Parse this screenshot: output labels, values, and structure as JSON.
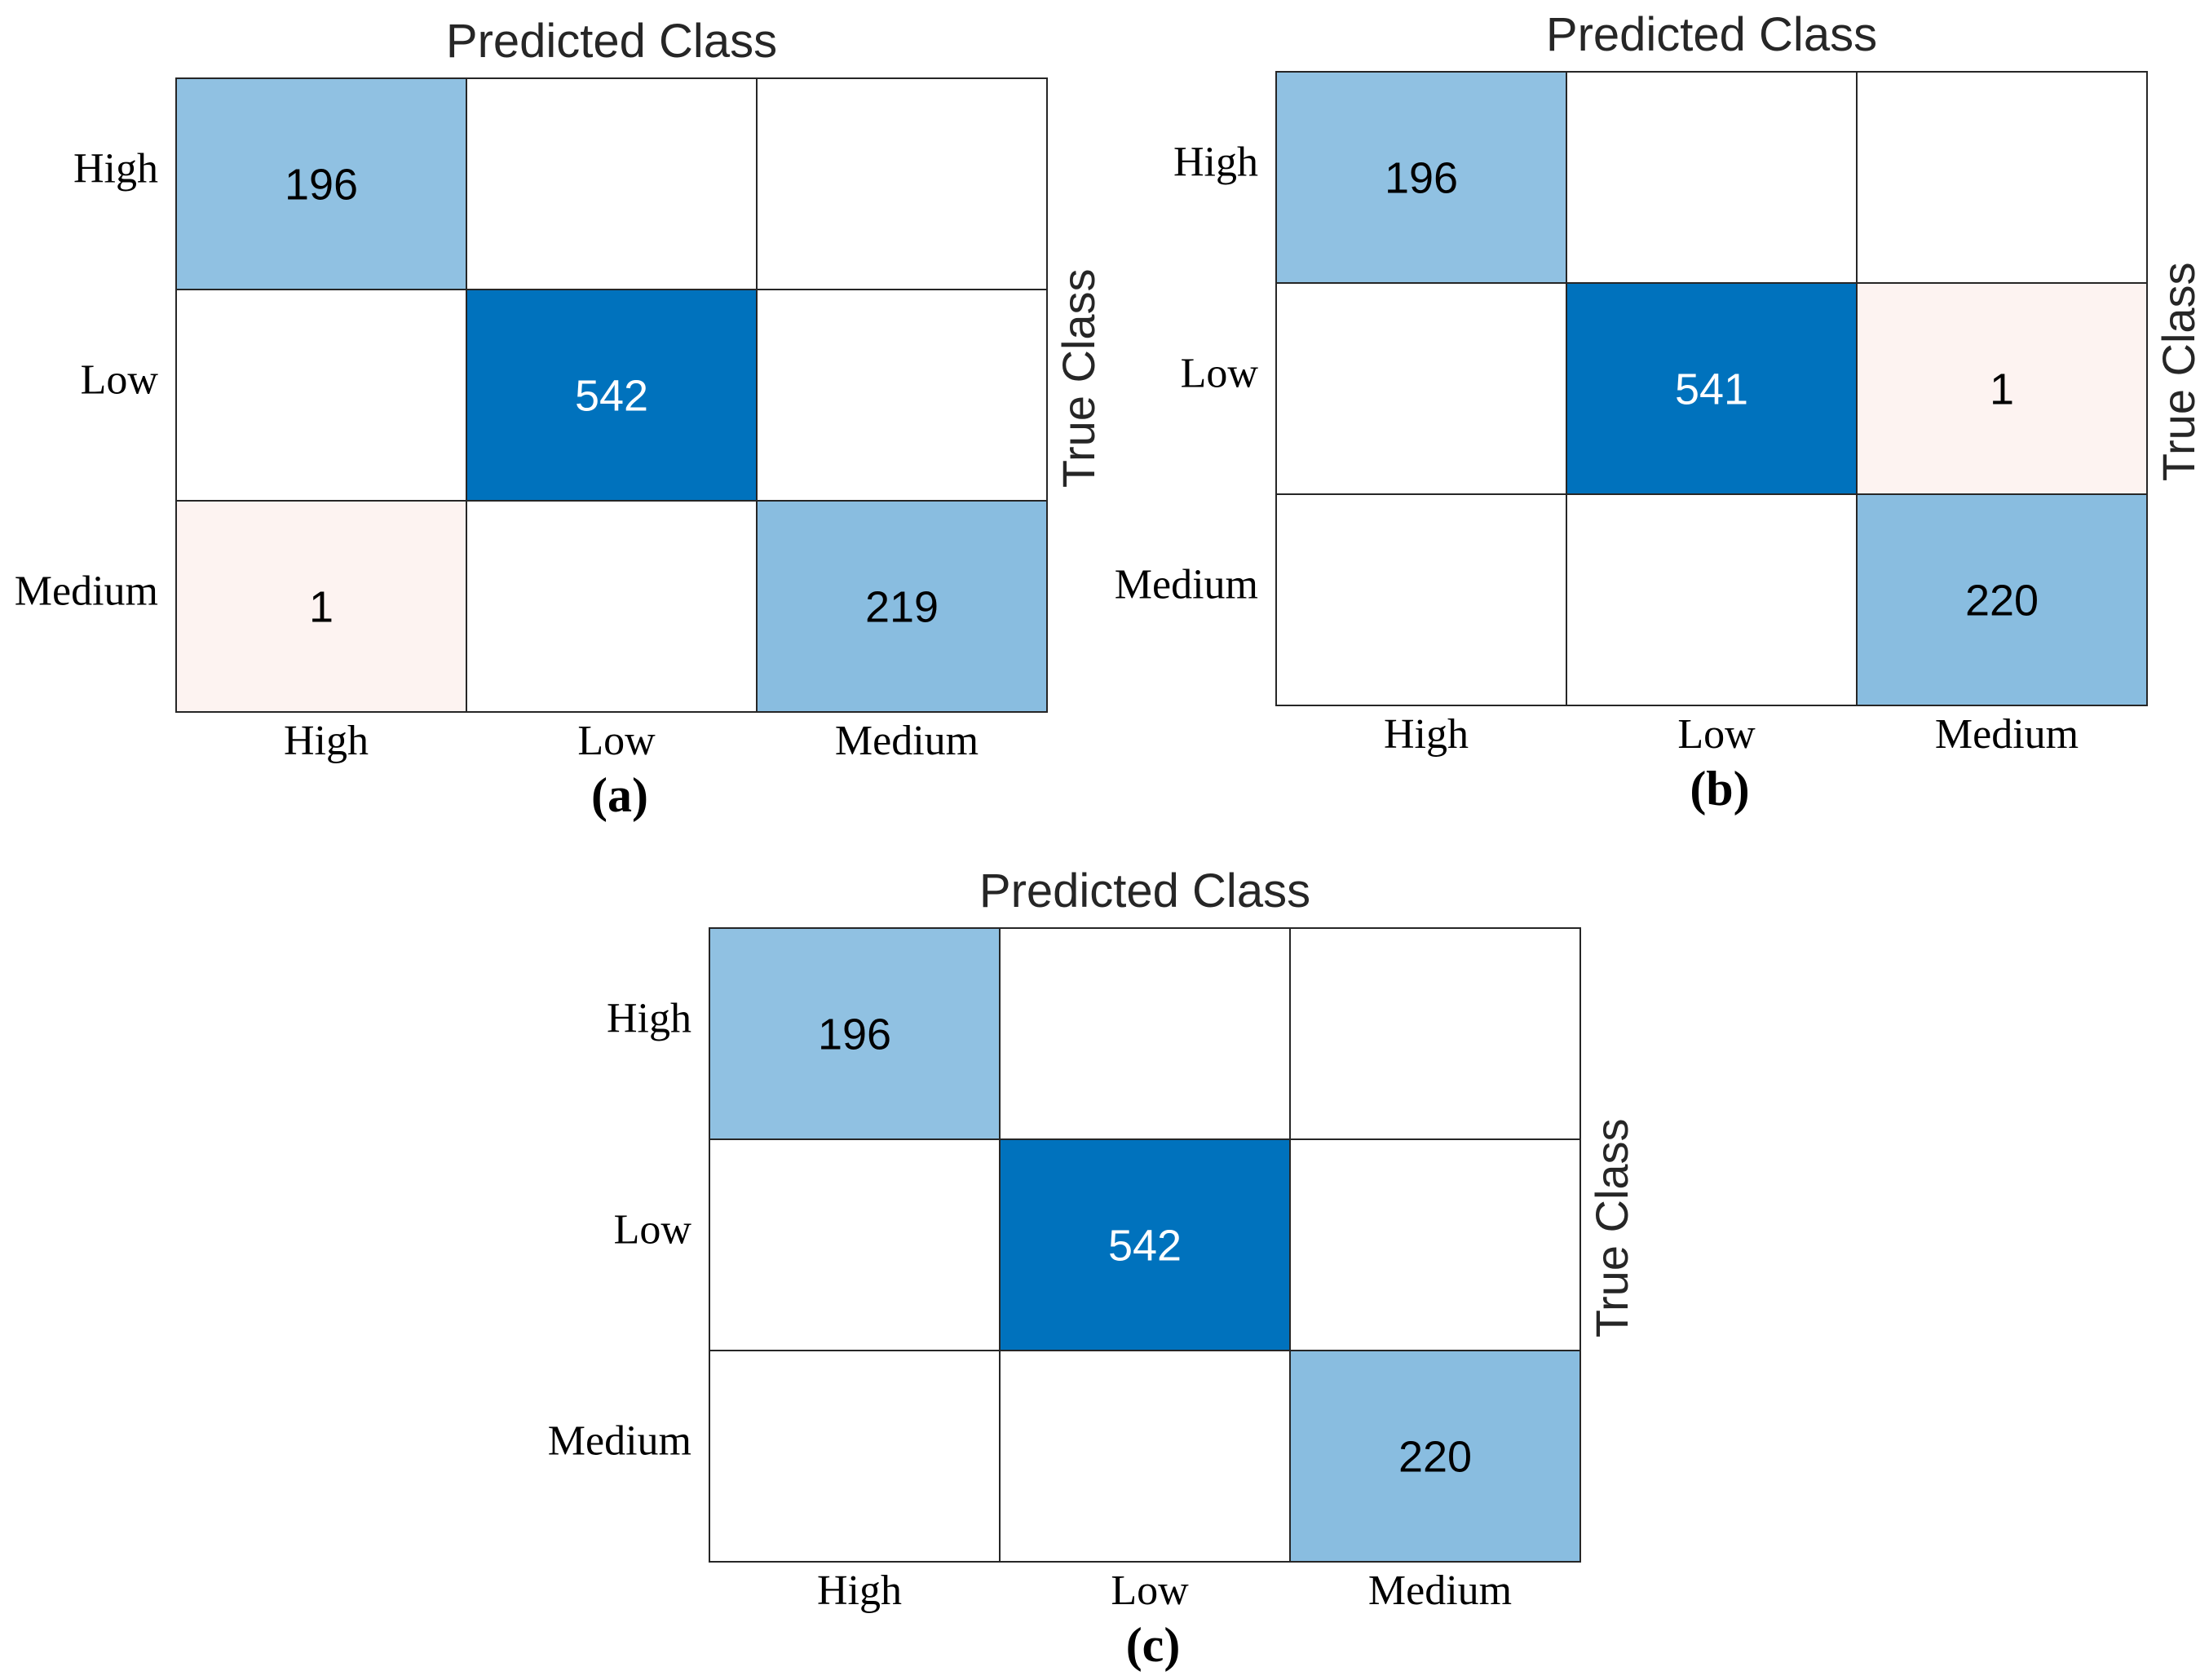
{
  "chart_data": [
    {
      "type": "heatmap",
      "caption": "(a)",
      "title": "Predicted Class",
      "ylabel": "True Class",
      "xlabels": [
        "High",
        "Low",
        "Medium"
      ],
      "ylabels": [
        "High",
        "Low",
        "Medium"
      ],
      "matrix": [
        [
          196,
          null,
          null
        ],
        [
          null,
          542,
          null
        ],
        [
          1,
          null,
          219
        ]
      ]
    },
    {
      "type": "heatmap",
      "caption": "(b)",
      "title": "Predicted Class",
      "ylabel": "True Class",
      "xlabels": [
        "High",
        "Low",
        "Medium"
      ],
      "ylabels": [
        "High",
        "Low",
        "Medium"
      ],
      "matrix": [
        [
          196,
          null,
          null
        ],
        [
          null,
          541,
          1
        ],
        [
          null,
          null,
          220
        ]
      ]
    },
    {
      "type": "heatmap",
      "caption": "(c)",
      "title": "Predicted Class",
      "ylabel": "True Class",
      "xlabels": [
        "High",
        "Low",
        "Medium"
      ],
      "ylabels": [
        "High",
        "Low",
        "Medium"
      ],
      "matrix": [
        [
          196,
          null,
          null
        ],
        [
          null,
          542,
          null
        ],
        [
          null,
          null,
          220
        ]
      ]
    }
  ],
  "colors": {
    "diagonal_max": "#0072bd",
    "diagonal_light": "#e6f0f8",
    "off_diagonal": "#fdf3f1",
    "empty": "#ffffff",
    "text_dark": "#000000",
    "text_light": "#ffffff"
  }
}
